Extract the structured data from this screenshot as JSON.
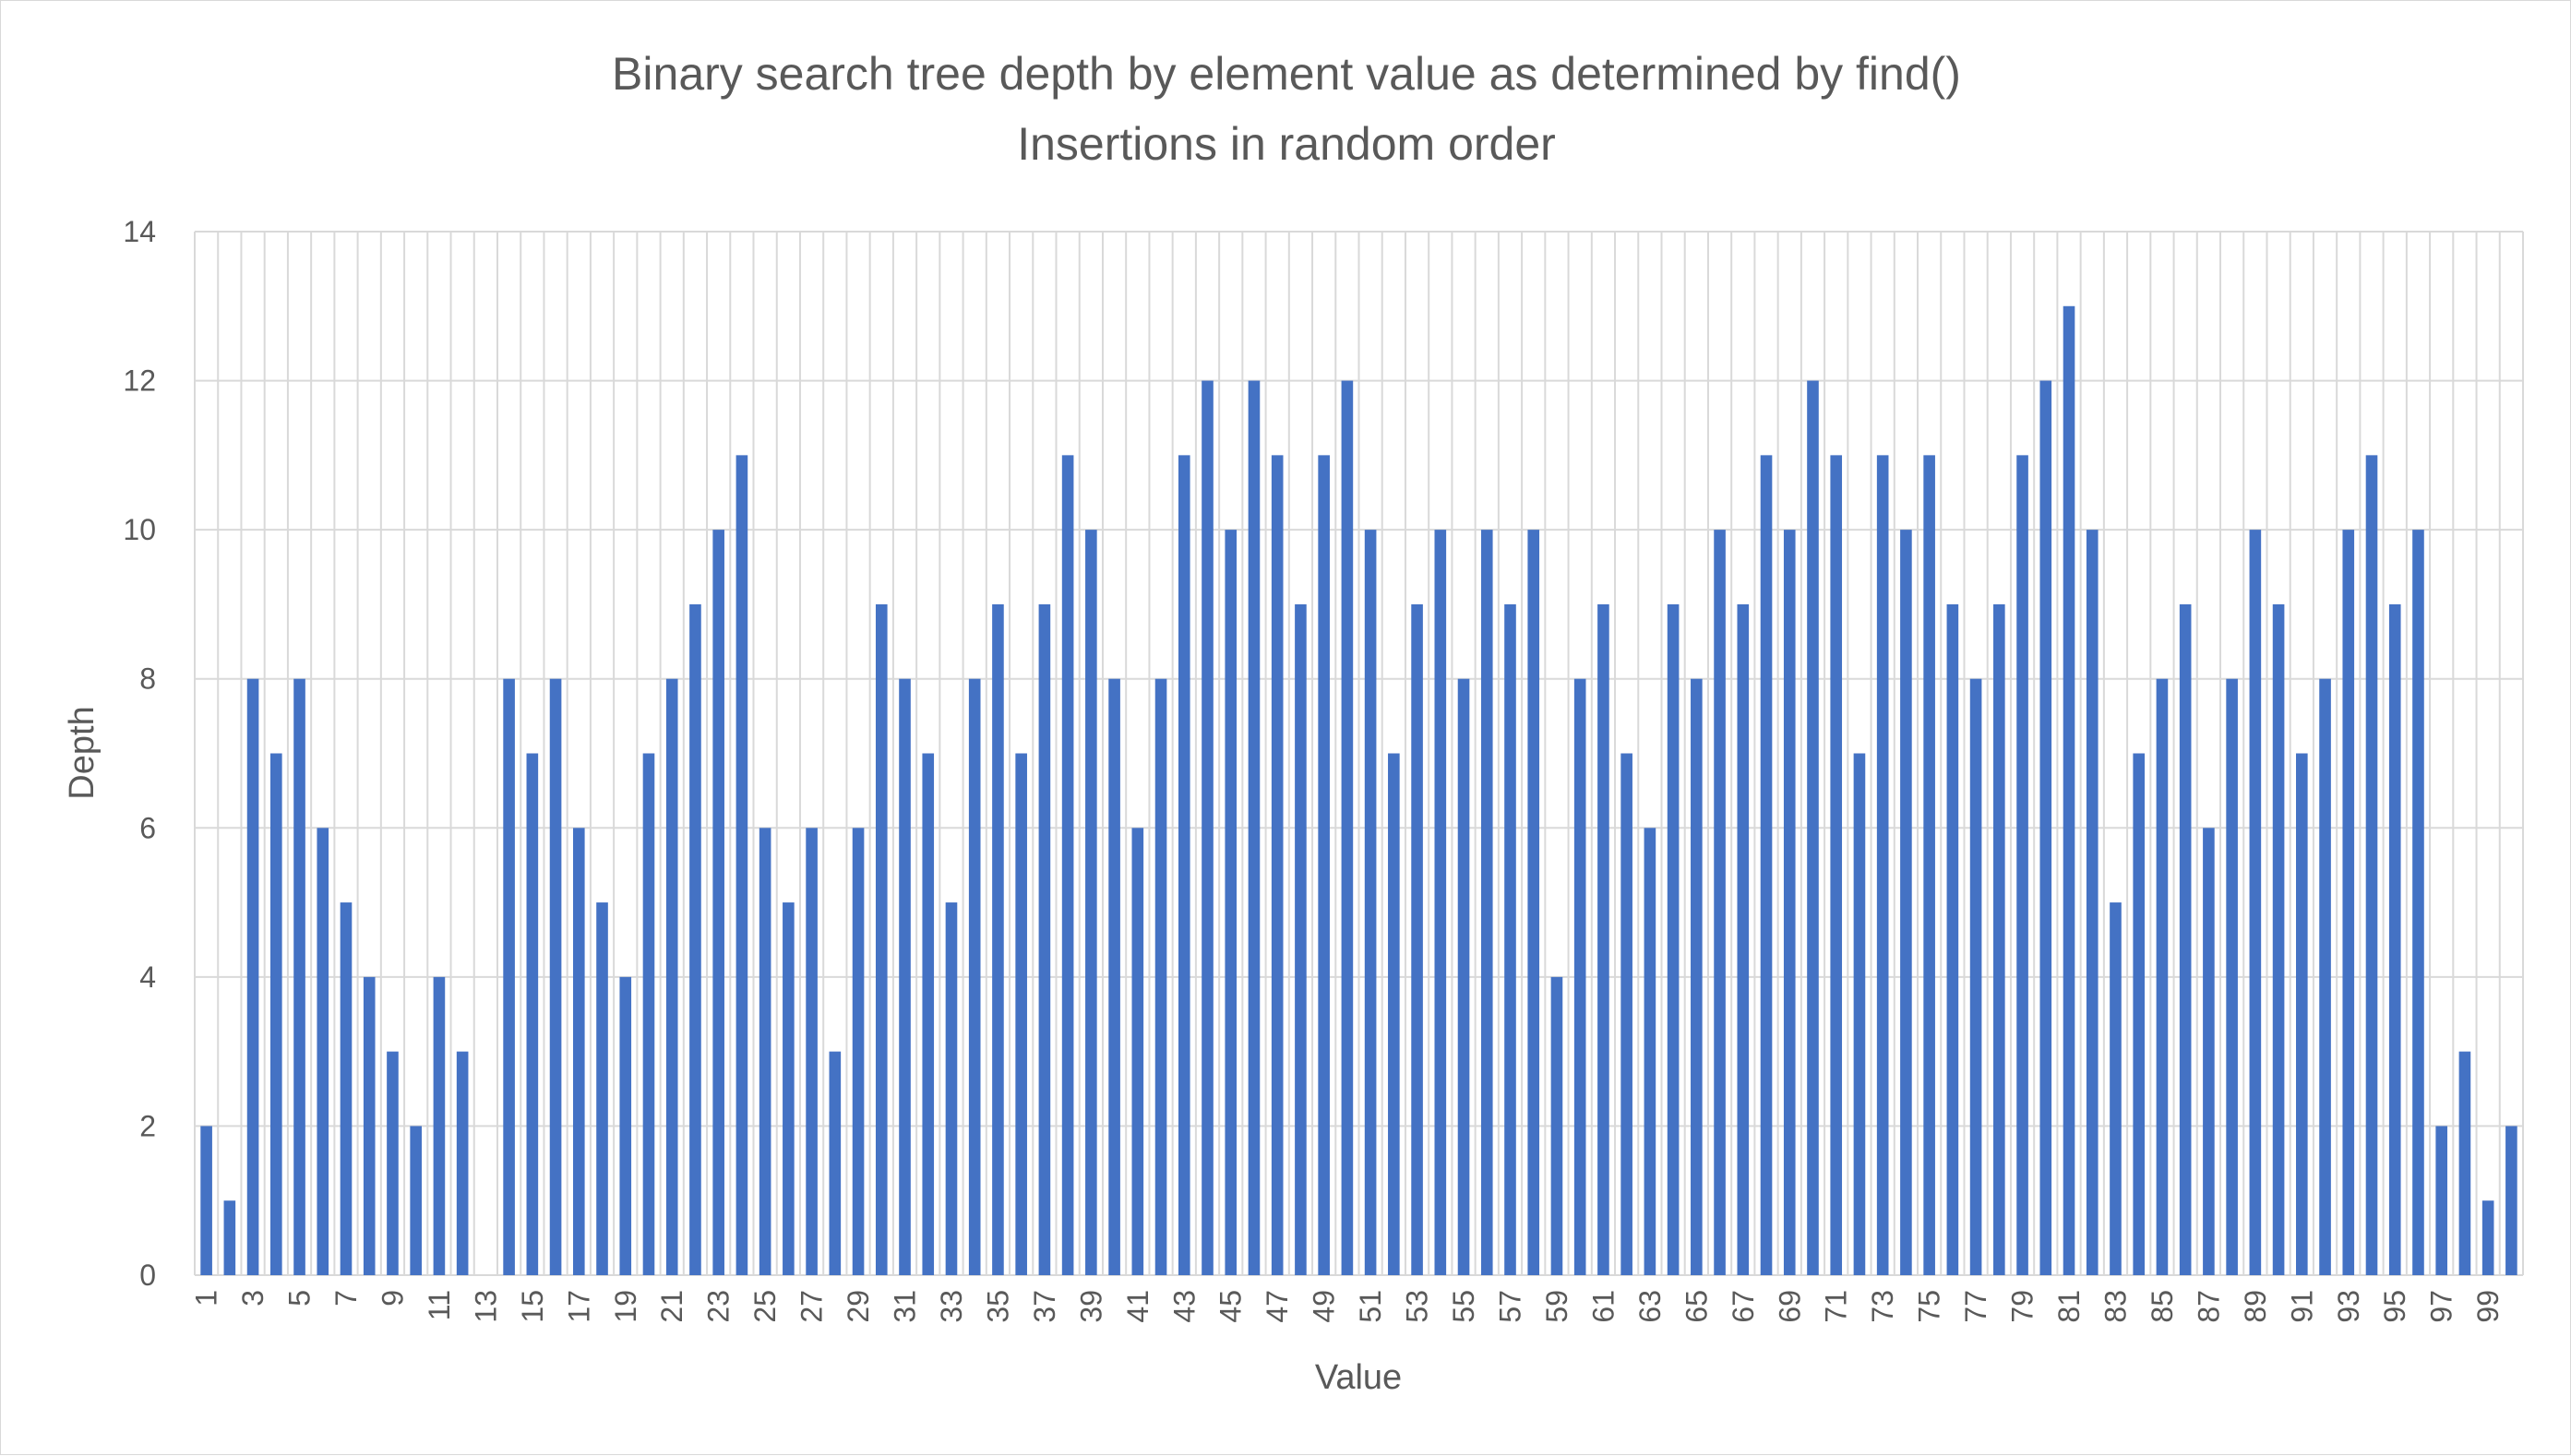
{
  "chart_data": {
    "type": "bar",
    "title": "Binary search tree depth by element value as determined by find()",
    "subtitle": "Insertions in random order",
    "xlabel": "Value",
    "ylabel": "Depth",
    "ylim": [
      0,
      14
    ],
    "yticks": [
      0,
      2,
      4,
      6,
      8,
      10,
      12,
      14
    ],
    "x_tick_labels_shown": [
      "1",
      "3",
      "5",
      "7",
      "9",
      "11",
      "13",
      "15",
      "17",
      "19",
      "21",
      "23",
      "25",
      "27",
      "29",
      "31",
      "33",
      "35",
      "37",
      "39",
      "41",
      "43",
      "45",
      "47",
      "49",
      "51",
      "53",
      "55",
      "57",
      "59",
      "61",
      "63",
      "65",
      "67",
      "69",
      "71",
      "73",
      "75",
      "77",
      "79",
      "81",
      "83",
      "85",
      "87",
      "89",
      "91",
      "93",
      "95",
      "97",
      "99"
    ],
    "grid": true,
    "bar_color": "#4472c4",
    "categories": [
      1,
      2,
      3,
      4,
      5,
      6,
      7,
      8,
      9,
      10,
      11,
      12,
      13,
      14,
      15,
      16,
      17,
      18,
      19,
      20,
      21,
      22,
      23,
      24,
      25,
      26,
      27,
      28,
      29,
      30,
      31,
      32,
      33,
      34,
      35,
      36,
      37,
      38,
      39,
      40,
      41,
      42,
      43,
      44,
      45,
      46,
      47,
      48,
      49,
      50,
      51,
      52,
      53,
      54,
      55,
      56,
      57,
      58,
      59,
      60,
      61,
      62,
      63,
      64,
      65,
      66,
      67,
      68,
      69,
      70,
      71,
      72,
      73,
      74,
      75,
      76,
      77,
      78,
      79,
      80,
      81,
      82,
      83,
      84,
      85,
      86,
      87,
      88,
      89,
      90,
      91,
      92,
      93,
      94,
      95,
      96,
      97,
      98,
      99,
      100
    ],
    "values": [
      2,
      1,
      8,
      7,
      8,
      6,
      5,
      4,
      3,
      2,
      4,
      3,
      0,
      8,
      7,
      8,
      6,
      5,
      4,
      7,
      8,
      9,
      10,
      11,
      6,
      5,
      6,
      3,
      6,
      9,
      8,
      7,
      5,
      8,
      9,
      7,
      9,
      11,
      10,
      8,
      6,
      8,
      11,
      12,
      10,
      12,
      11,
      9,
      11,
      12,
      10,
      7,
      9,
      10,
      8,
      10,
      9,
      10,
      4,
      8,
      9,
      7,
      6,
      9,
      8,
      10,
      9,
      11,
      10,
      12,
      11,
      7,
      11,
      10,
      11,
      9,
      8,
      9,
      11,
      12,
      13,
      10,
      5,
      7,
      8,
      9,
      6,
      8,
      10,
      9,
      7,
      8,
      10,
      11,
      9,
      10,
      2,
      3,
      1,
      2
    ]
  }
}
